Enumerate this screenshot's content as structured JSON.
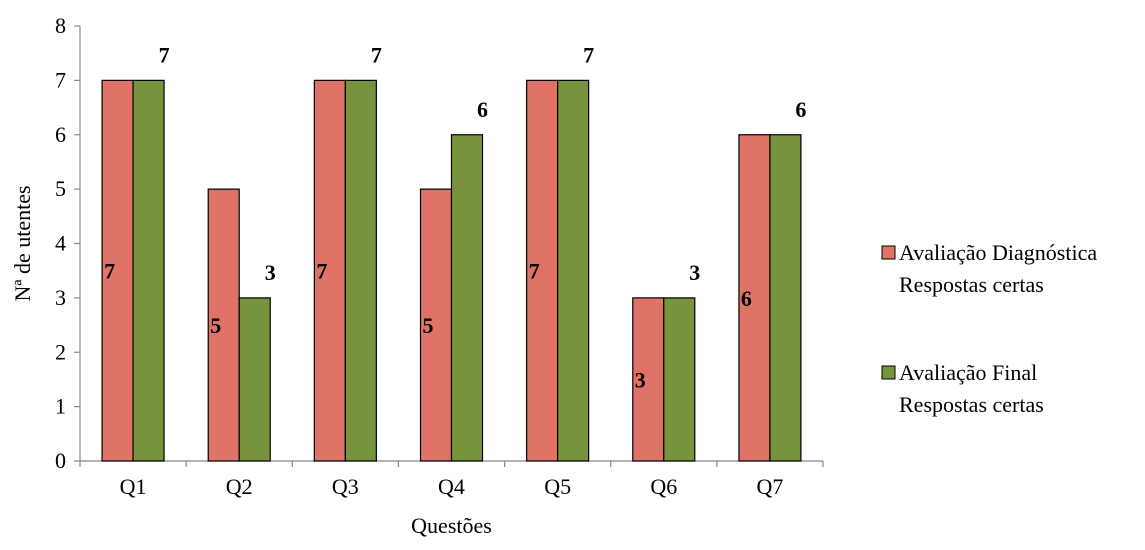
{
  "chart_data": {
    "type": "bar",
    "categories": [
      "Q1",
      "Q2",
      "Q3",
      "Q4",
      "Q5",
      "Q6",
      "Q7"
    ],
    "series": [
      {
        "name": "Avaliação Diagnóstica Respostas certas",
        "legend_lines": [
          "Avaliação Diagnóstica",
          "Respostas certas"
        ],
        "color": "#E07368",
        "values": [
          7,
          5,
          7,
          5,
          7,
          3,
          6
        ],
        "label_position": "inside-middle"
      },
      {
        "name": "Avaliação Final Respostas certas",
        "legend_lines": [
          "Avaliação Final",
          "Respostas certas"
        ],
        "color": "#77933C",
        "values": [
          7,
          3,
          7,
          6,
          7,
          3,
          6
        ],
        "label_position": "outside-top"
      }
    ],
    "xlabel": "Questões",
    "ylabel": "Nª de utentes",
    "ylim": [
      0,
      8
    ],
    "yticks": [
      "0",
      "1",
      "2",
      "3",
      "4",
      "5",
      "6",
      "7",
      "8"
    ],
    "grid": false,
    "legend_position": "right"
  }
}
